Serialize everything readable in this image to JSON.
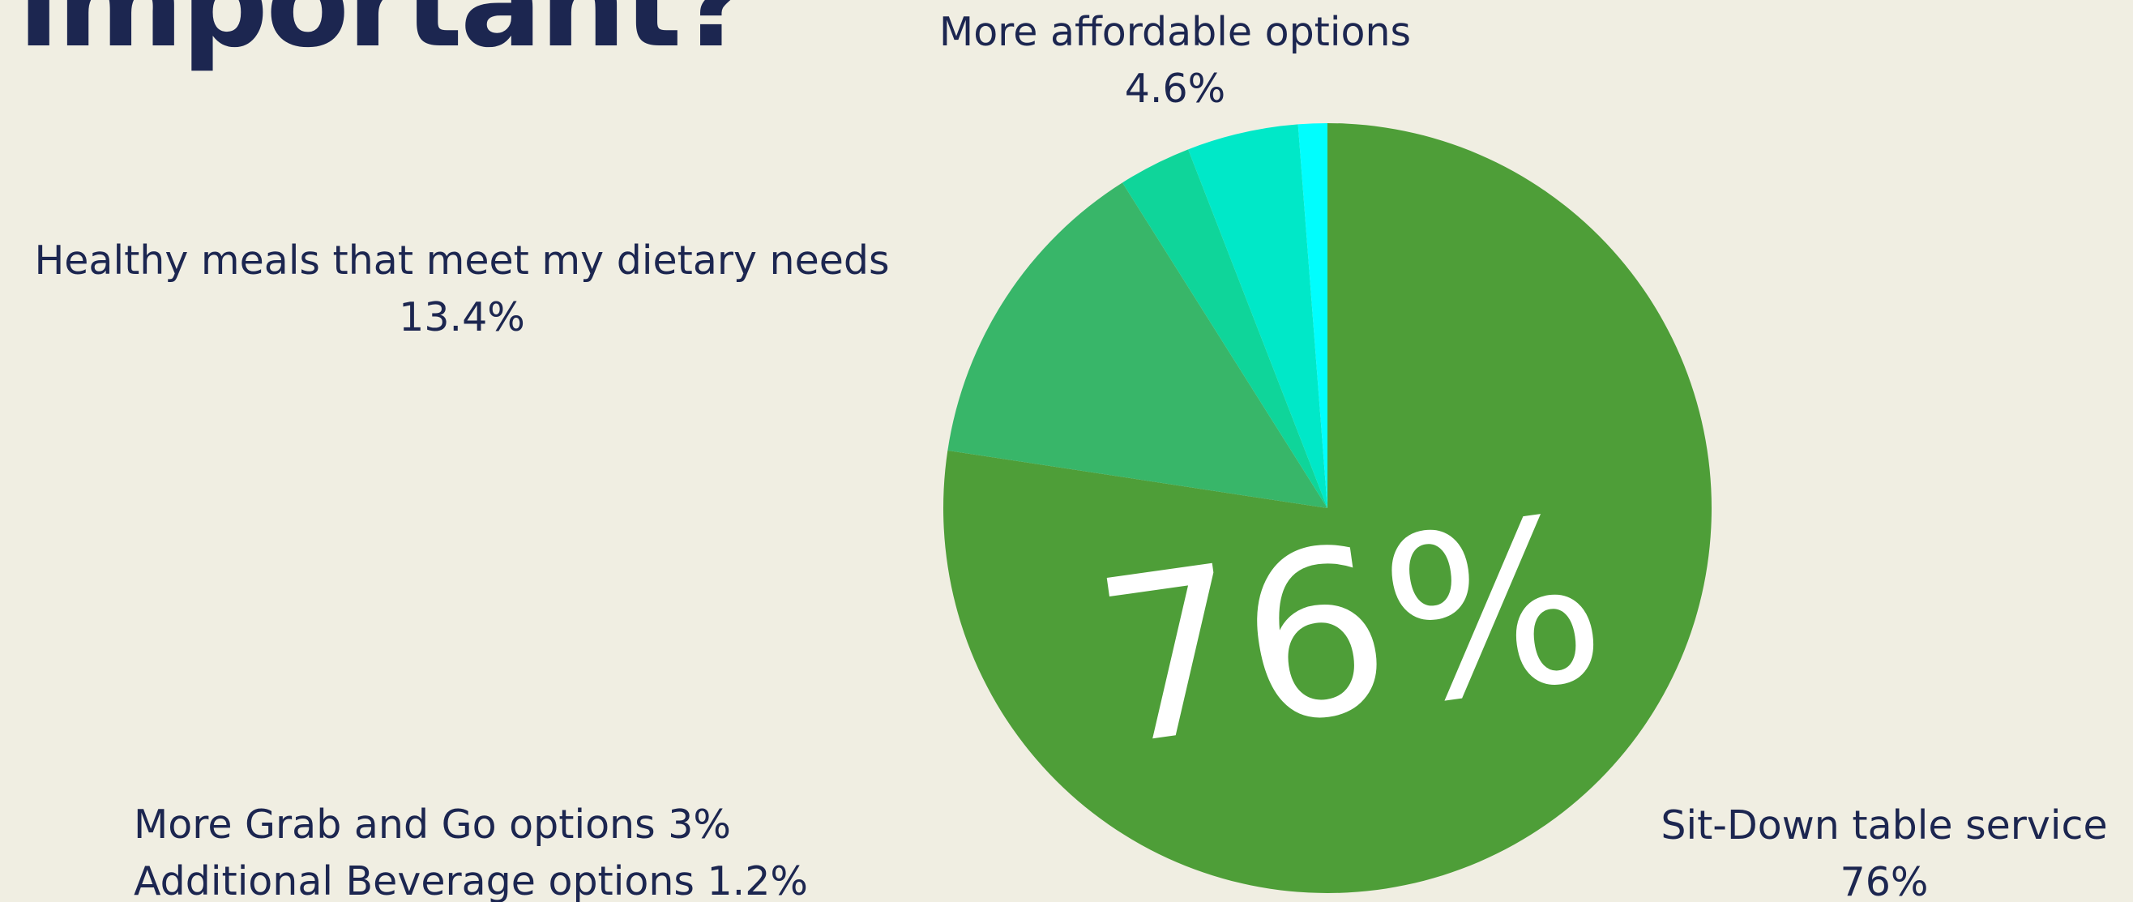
{
  "title": "important?",
  "big_value": "76%",
  "labels": {
    "affordable": {
      "name": "More affordable options",
      "value": "4.6%"
    },
    "healthy": {
      "name": "Healthy meals that meet my dietary needs",
      "value": "13.4%"
    },
    "grab_go": "More Grab and Go options 3%",
    "beverage": "Additional Beverage options 1.2%",
    "sitdown": {
      "name": "Sit-Down table service",
      "value": "76%"
    }
  },
  "chart_data": {
    "type": "pie",
    "start_angle": "12 o'clock",
    "direction": "clockwise",
    "slices": [
      {
        "label": "Sit-Down table service",
        "value": 76,
        "color": "#4e9e38"
      },
      {
        "label": "Healthy meals that meet my dietary needs",
        "value": 13.4,
        "color": "#38b669"
      },
      {
        "label": "More Grab and Go options",
        "value": 3,
        "color": "#0fd59a"
      },
      {
        "label": "More affordable options",
        "value": 4.6,
        "color": "#00e8c8"
      },
      {
        "label": "Additional Beverage options",
        "value": 1.2,
        "color": "#00fefe"
      }
    ]
  }
}
